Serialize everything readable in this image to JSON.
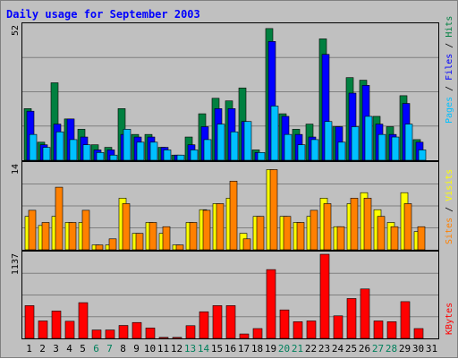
{
  "chart_data": {
    "type": "bar",
    "title": "Daily usage for September 2003",
    "days": [
      "1",
      "2",
      "3",
      "4",
      "5",
      "6",
      "7",
      "8",
      "9",
      "10",
      "11",
      "12",
      "13",
      "14",
      "15",
      "16",
      "17",
      "18",
      "19",
      "20",
      "21",
      "22",
      "23",
      "24",
      "25",
      "26",
      "27",
      "28",
      "29",
      "30",
      "31"
    ],
    "weekend_days": [
      "6",
      "7",
      "13",
      "14",
      "20",
      "21",
      "27",
      "28"
    ],
    "panels": {
      "top": {
        "max_label": "52",
        "ylim": [
          0,
          52
        ],
        "series": [
          {
            "name": "Hits",
            "values": [
              20,
              7,
              30,
              16,
              12,
              6,
              5,
              20,
              10,
              10,
              5,
              2,
              9,
              18,
              24,
              23,
              28,
              4,
              51,
              18,
              12,
              14,
              47,
              13,
              32,
              31,
              17,
              13,
              25,
              8,
              0
            ]
          },
          {
            "name": "Files",
            "values": [
              19,
              6,
              14,
              16,
              9,
              4,
              4,
              10,
              9,
              9,
              5,
              2,
              6,
              13,
              20,
              20,
              15,
              3,
              46,
              17,
              10,
              9,
              41,
              13,
              26,
              29,
              14,
              10,
              22,
              7,
              0
            ]
          },
          {
            "name": "Pages",
            "values": [
              10,
              5,
              11,
              8,
              6,
              3,
              2,
              12,
              7,
              7,
              4,
              2,
              4,
              8,
              14,
              11,
              15,
              3,
              21,
              10,
              6,
              8,
              15,
              7,
              13,
              17,
              10,
              9,
              14,
              4,
              0
            ]
          }
        ]
      },
      "middle": {
        "max_label": "14",
        "ylim": [
          0,
          14
        ],
        "series": [
          {
            "name": "Visits",
            "values": [
              5.5,
              4,
              5.5,
              4.5,
              4.5,
              0.8,
              0.8,
              8.5,
              2.7,
              4.5,
              2.7,
              0.8,
              4.5,
              6.6,
              7.6,
              8.5,
              2.7,
              5.5,
              13.2,
              5.5,
              4.5,
              5.5,
              8.5,
              3.8,
              7.6,
              9.4,
              6.6,
              4.5,
              9.4,
              3,
              0
            ]
          },
          {
            "name": "Sites",
            "values": [
              6.5,
              4.5,
              10.3,
              4.5,
              6.5,
              0.8,
              1.8,
              7.6,
              2.7,
              4.5,
              3.8,
              0.8,
              4.5,
              6.5,
              7.6,
              11.3,
              1.8,
              5.5,
              13.2,
              5.5,
              4.5,
              6.5,
              7.6,
              3.8,
              8.5,
              8.5,
              5.5,
              3.8,
              7.6,
              3.8,
              0
            ]
          }
        ]
      },
      "bottom": {
        "max_label": "1137",
        "ylim": [
          0,
          1137
        ],
        "series": [
          {
            "name": "KBytes",
            "values": [
              443,
              236,
              370,
              232,
              483,
              114,
              114,
              175,
              215,
              141,
              14,
              14,
              172,
              360,
              443,
              443,
              60,
              133,
              930,
              385,
              226,
              236,
              1137,
              305,
              539,
              668,
              236,
              226,
              497,
              133,
              0
            ]
          }
        ]
      }
    },
    "legend": {
      "top": [
        "Pages",
        "Files",
        "Hits"
      ],
      "middle": [
        "Sites",
        "Visits"
      ],
      "bottom": [
        "KBytes"
      ]
    },
    "colors": {
      "Hits": "#008040",
      "Files": "#0000ff",
      "Pages": "#00c0ff",
      "Visits": "#ffff00",
      "Sites": "#ff8000",
      "KBytes": "#ff0000",
      "title": "#0000ff",
      "weekday": "#000000",
      "weekend": "#00805c",
      "panel_bg": "#c0c0c0",
      "gridline": "#808080"
    }
  }
}
